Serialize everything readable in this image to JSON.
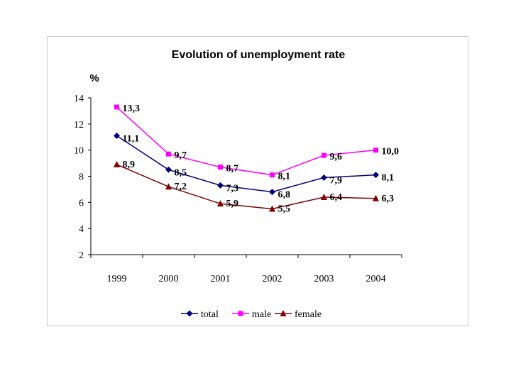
{
  "chart_data": {
    "type": "line",
    "title": "Evolution of unemployment rate",
    "ylabel": "%",
    "xlabel": "",
    "categories": [
      "1999",
      "2000",
      "2001",
      "2002",
      "2003",
      "2004"
    ],
    "ylim": [
      2,
      14
    ],
    "yticks": [
      "2",
      "4",
      "6",
      "8",
      "10",
      "12",
      "14"
    ],
    "grid": false,
    "legend_position": "bottom",
    "series": [
      {
        "name": "total",
        "color": "#000080",
        "marker": "diamond",
        "values": [
          11.1,
          8.5,
          7.3,
          6.8,
          7.9,
          8.1
        ],
        "labels": [
          "11,1",
          "8,5",
          "7,3",
          "6,8",
          "7,9",
          "8,1"
        ]
      },
      {
        "name": "male",
        "color": "#ff00ff",
        "marker": "square",
        "values": [
          13.3,
          9.7,
          8.7,
          8.1,
          9.6,
          10.0
        ],
        "labels": [
          "13,3",
          "9,7",
          "8,7",
          "8,1",
          "9,6",
          "10,0"
        ]
      },
      {
        "name": "female",
        "color": "#800000",
        "marker": "triangle",
        "values": [
          8.9,
          7.2,
          5.9,
          5.5,
          6.4,
          6.3
        ],
        "labels": [
          "8,9",
          "7,2",
          "5,9",
          "5,5",
          "6,4",
          "6,3"
        ]
      }
    ]
  }
}
